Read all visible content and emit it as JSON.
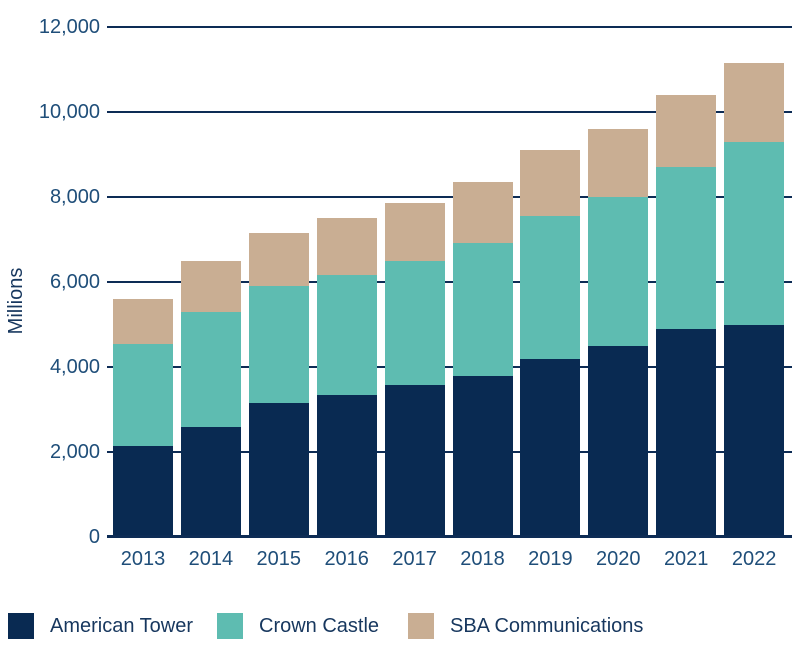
{
  "chart_data": {
    "type": "bar",
    "stacked": true,
    "ylabel": "Millions",
    "categories": [
      "2013",
      "2014",
      "2015",
      "2016",
      "2017",
      "2018",
      "2019",
      "2020",
      "2021",
      "2022"
    ],
    "series": [
      {
        "name": "American Tower",
        "color": "#092a52",
        "values": [
          2150,
          2600,
          3150,
          3350,
          3575,
          3800,
          4200,
          4500,
          4900,
          5000
        ]
      },
      {
        "name": "Crown Castle",
        "color": "#5ebcb1",
        "values": [
          2400,
          2700,
          2750,
          2825,
          2925,
          3125,
          3350,
          3500,
          3800,
          4300
        ]
      },
      {
        "name": "SBA Communications",
        "color": "#c9ae93",
        "values": [
          1050,
          1200,
          1250,
          1325,
          1350,
          1425,
          1550,
          1600,
          1700,
          1850
        ]
      }
    ],
    "totals": [
      5600,
      6500,
      7150,
      7500,
      7850,
      8350,
      9100,
      9600,
      10400,
      11150
    ],
    "ylim": [
      0,
      12000
    ],
    "yticks": [
      0,
      2000,
      4000,
      6000,
      8000,
      10000,
      12000
    ],
    "grid": "horizontal-only",
    "legend_position": "bottom",
    "colors": {
      "grid_axis": "#0d2c55",
      "tick_label": "#1f4e79",
      "legend_text": "#17375e"
    }
  }
}
